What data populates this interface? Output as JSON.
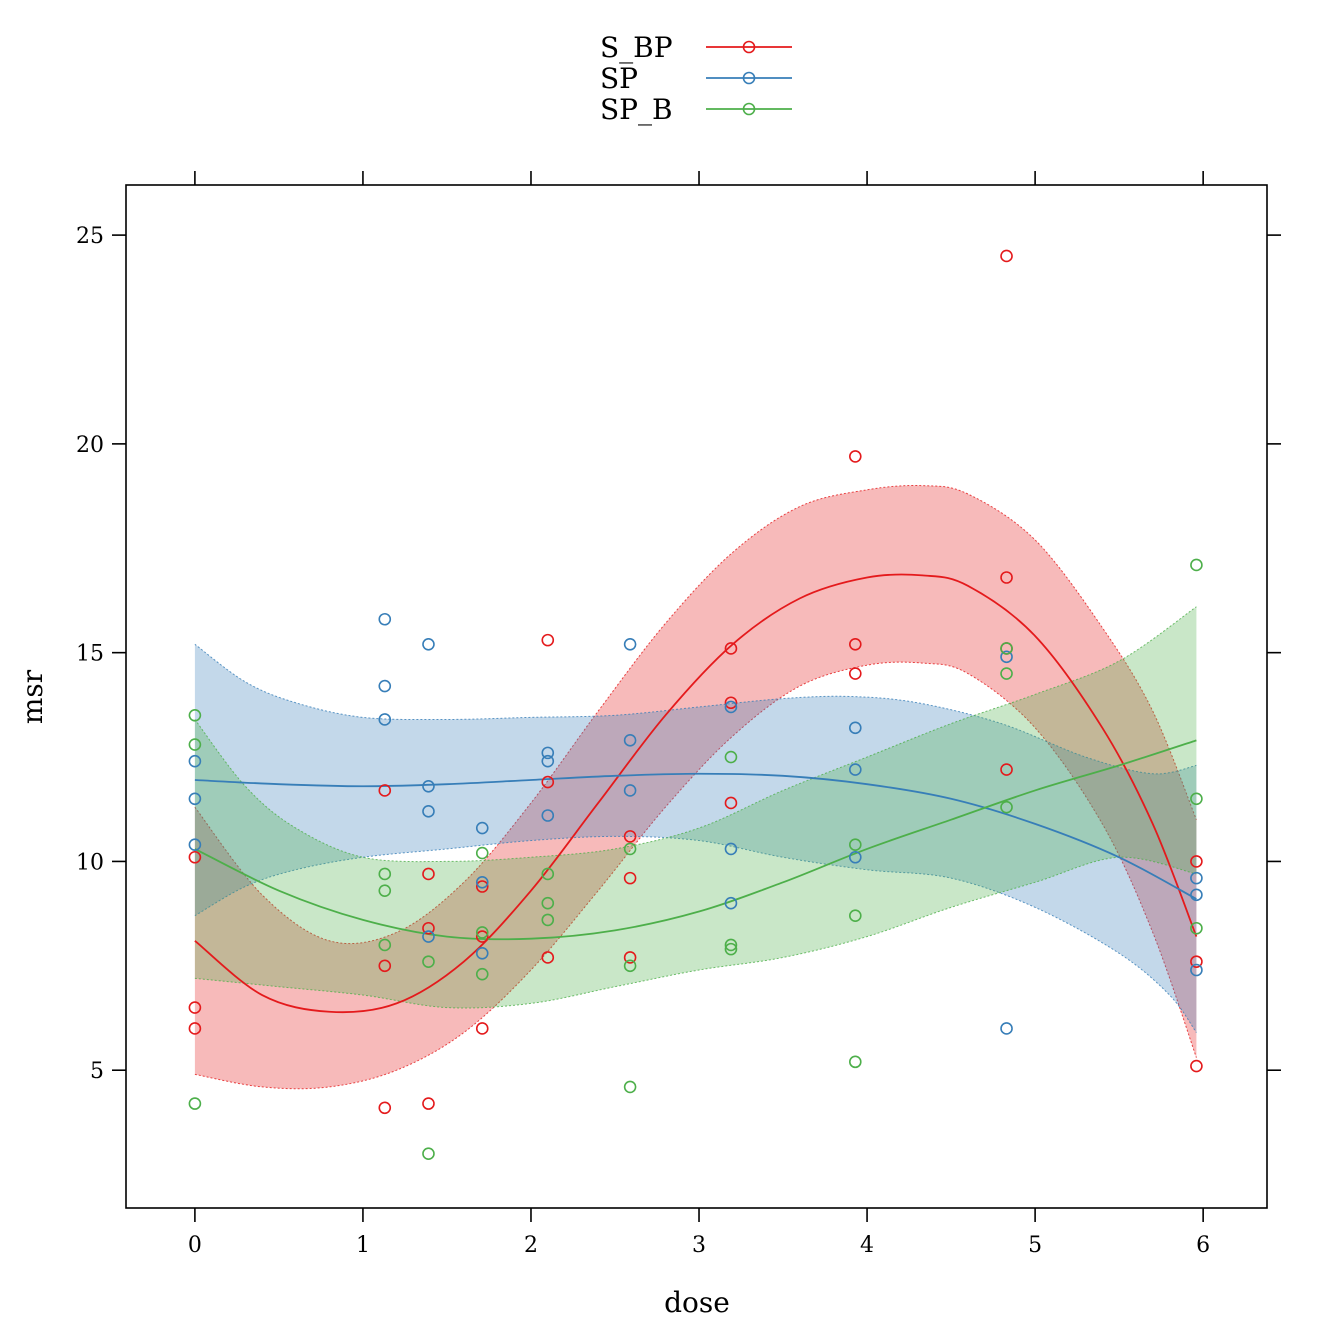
{
  "chart_data": {
    "type": "scatter",
    "xlabel": "dose",
    "ylabel": "msr",
    "xlim": [
      -0.41,
      6.38
    ],
    "ylim": [
      1.7,
      26.2
    ],
    "xticks": [
      0,
      1,
      2,
      3,
      4,
      5,
      6
    ],
    "yticks": [
      5,
      10,
      15,
      20,
      25
    ],
    "legend_position": "top-center",
    "grid": false,
    "series": [
      {
        "name": "S_BP",
        "color": "#E41A1C",
        "points": [
          [
            0,
            10.1
          ],
          [
            0,
            6.5
          ],
          [
            0,
            6.0
          ],
          [
            1.13,
            11.7
          ],
          [
            1.13,
            7.5
          ],
          [
            1.13,
            4.1
          ],
          [
            1.39,
            9.7
          ],
          [
            1.39,
            8.4
          ],
          [
            1.39,
            4.2
          ],
          [
            1.71,
            9.4
          ],
          [
            1.71,
            8.2
          ],
          [
            1.71,
            6.0
          ],
          [
            2.1,
            15.3
          ],
          [
            2.1,
            11.9
          ],
          [
            2.1,
            7.7
          ],
          [
            2.59,
            10.6
          ],
          [
            2.59,
            9.6
          ],
          [
            2.59,
            7.7
          ],
          [
            3.19,
            15.1
          ],
          [
            3.19,
            13.8
          ],
          [
            3.19,
            11.4
          ],
          [
            3.93,
            19.7
          ],
          [
            3.93,
            15.2
          ],
          [
            3.93,
            14.5
          ],
          [
            4.83,
            24.5
          ],
          [
            4.83,
            16.8
          ],
          [
            4.83,
            15.1
          ],
          [
            4.83,
            12.2
          ],
          [
            5.96,
            10.0
          ],
          [
            5.96,
            7.6
          ],
          [
            5.96,
            5.1
          ]
        ],
        "fit": [
          [
            0,
            8.1
          ],
          [
            0.4,
            6.8
          ],
          [
            0.8,
            6.4
          ],
          [
            1.2,
            6.6
          ],
          [
            1.6,
            7.6
          ],
          [
            2.0,
            9.3
          ],
          [
            2.4,
            11.4
          ],
          [
            2.8,
            13.5
          ],
          [
            3.2,
            15.2
          ],
          [
            3.6,
            16.3
          ],
          [
            4.0,
            16.8
          ],
          [
            4.33,
            16.85
          ],
          [
            4.6,
            16.6
          ],
          [
            5.0,
            15.4
          ],
          [
            5.4,
            13.2
          ],
          [
            5.7,
            10.9
          ],
          [
            5.96,
            8.2
          ]
        ],
        "band_upper": [
          [
            0,
            11.3
          ],
          [
            0.4,
            9.2
          ],
          [
            0.8,
            8.1
          ],
          [
            1.2,
            8.3
          ],
          [
            1.6,
            9.5
          ],
          [
            2.0,
            11.4
          ],
          [
            2.4,
            13.6
          ],
          [
            2.8,
            15.7
          ],
          [
            3.2,
            17.4
          ],
          [
            3.6,
            18.5
          ],
          [
            4.0,
            18.9
          ],
          [
            4.33,
            19.0
          ],
          [
            4.6,
            18.8
          ],
          [
            5.0,
            17.7
          ],
          [
            5.4,
            15.6
          ],
          [
            5.7,
            13.6
          ],
          [
            5.96,
            11.0
          ]
        ],
        "band_lower": [
          [
            0,
            4.9
          ],
          [
            0.4,
            4.6
          ],
          [
            0.8,
            4.6
          ],
          [
            1.2,
            5.0
          ],
          [
            1.6,
            5.9
          ],
          [
            2.0,
            7.4
          ],
          [
            2.4,
            9.3
          ],
          [
            2.8,
            11.3
          ],
          [
            3.2,
            13.0
          ],
          [
            3.6,
            14.2
          ],
          [
            4.0,
            14.7
          ],
          [
            4.33,
            14.75
          ],
          [
            4.6,
            14.5
          ],
          [
            5.0,
            13.2
          ],
          [
            5.4,
            10.9
          ],
          [
            5.7,
            8.3
          ],
          [
            5.96,
            5.3
          ]
        ]
      },
      {
        "name": "SP",
        "color": "#377EB8",
        "points": [
          [
            0,
            12.4
          ],
          [
            0,
            11.5
          ],
          [
            0,
            10.4
          ],
          [
            1.13,
            15.8
          ],
          [
            1.13,
            14.2
          ],
          [
            1.13,
            13.4
          ],
          [
            1.39,
            15.2
          ],
          [
            1.39,
            11.8
          ],
          [
            1.39,
            11.2
          ],
          [
            1.39,
            8.2
          ],
          [
            1.71,
            10.8
          ],
          [
            1.71,
            9.5
          ],
          [
            1.71,
            7.8
          ],
          [
            2.1,
            12.6
          ],
          [
            2.1,
            12.4
          ],
          [
            2.1,
            11.1
          ],
          [
            2.59,
            15.2
          ],
          [
            2.59,
            12.9
          ],
          [
            2.59,
            11.7
          ],
          [
            3.19,
            13.7
          ],
          [
            3.19,
            10.3
          ],
          [
            3.19,
            9.0
          ],
          [
            3.93,
            13.2
          ],
          [
            3.93,
            12.2
          ],
          [
            3.93,
            10.1
          ],
          [
            4.83,
            14.9
          ],
          [
            4.83,
            6.0
          ],
          [
            5.96,
            9.6
          ],
          [
            5.96,
            9.2
          ],
          [
            5.96,
            7.4
          ]
        ],
        "fit": [
          [
            0,
            11.95
          ],
          [
            0.5,
            11.85
          ],
          [
            1.0,
            11.8
          ],
          [
            1.5,
            11.85
          ],
          [
            2.0,
            11.95
          ],
          [
            2.5,
            12.05
          ],
          [
            3.0,
            12.1
          ],
          [
            3.5,
            12.05
          ],
          [
            4.0,
            11.85
          ],
          [
            4.5,
            11.5
          ],
          [
            5.0,
            10.9
          ],
          [
            5.5,
            10.1
          ],
          [
            5.96,
            9.1
          ]
        ],
        "band_upper": [
          [
            0,
            15.2
          ],
          [
            0.3,
            14.3
          ],
          [
            0.6,
            13.8
          ],
          [
            1.0,
            13.45
          ],
          [
            1.5,
            13.4
          ],
          [
            2.0,
            13.45
          ],
          [
            2.5,
            13.5
          ],
          [
            3.0,
            13.7
          ],
          [
            3.5,
            13.9
          ],
          [
            3.9,
            13.95
          ],
          [
            4.3,
            13.8
          ],
          [
            4.8,
            13.3
          ],
          [
            5.3,
            12.5
          ],
          [
            5.7,
            12.1
          ],
          [
            5.96,
            12.3
          ]
        ],
        "band_lower": [
          [
            0,
            8.7
          ],
          [
            0.3,
            9.4
          ],
          [
            0.6,
            9.8
          ],
          [
            1.0,
            10.1
          ],
          [
            1.5,
            10.3
          ],
          [
            2.0,
            10.5
          ],
          [
            2.5,
            10.6
          ],
          [
            3.0,
            10.5
          ],
          [
            3.5,
            10.1
          ],
          [
            4.0,
            9.8
          ],
          [
            4.5,
            9.6
          ],
          [
            5.0,
            8.9
          ],
          [
            5.5,
            7.8
          ],
          [
            5.8,
            6.8
          ],
          [
            5.96,
            5.9
          ]
        ]
      },
      {
        "name": "SP_B",
        "color": "#4DAF4A",
        "points": [
          [
            0,
            13.5
          ],
          [
            0,
            12.8
          ],
          [
            0,
            4.2
          ],
          [
            1.13,
            9.7
          ],
          [
            1.13,
            9.3
          ],
          [
            1.13,
            8.0
          ],
          [
            1.39,
            7.6
          ],
          [
            1.39,
            3.0
          ],
          [
            1.71,
            10.2
          ],
          [
            1.71,
            8.3
          ],
          [
            1.71,
            7.3
          ],
          [
            2.1,
            9.7
          ],
          [
            2.1,
            9.0
          ],
          [
            2.1,
            8.6
          ],
          [
            2.59,
            10.3
          ],
          [
            2.59,
            7.5
          ],
          [
            2.59,
            4.6
          ],
          [
            3.19,
            12.5
          ],
          [
            3.19,
            8.0
          ],
          [
            3.19,
            7.9
          ],
          [
            3.93,
            10.4
          ],
          [
            3.93,
            8.7
          ],
          [
            3.93,
            5.2
          ],
          [
            4.83,
            15.1
          ],
          [
            4.83,
            14.5
          ],
          [
            4.83,
            11.3
          ],
          [
            5.96,
            17.1
          ],
          [
            5.96,
            11.5
          ],
          [
            5.96,
            8.4
          ]
        ],
        "fit": [
          [
            0,
            10.3
          ],
          [
            0.5,
            9.3
          ],
          [
            1.0,
            8.6
          ],
          [
            1.5,
            8.2
          ],
          [
            2.0,
            8.15
          ],
          [
            2.5,
            8.35
          ],
          [
            3.0,
            8.8
          ],
          [
            3.5,
            9.5
          ],
          [
            4.0,
            10.3
          ],
          [
            4.5,
            11.0
          ],
          [
            5.0,
            11.7
          ],
          [
            5.5,
            12.3
          ],
          [
            5.96,
            12.9
          ]
        ],
        "band_upper": [
          [
            0,
            13.4
          ],
          [
            0.3,
            11.8
          ],
          [
            0.6,
            10.8
          ],
          [
            1.0,
            10.1
          ],
          [
            1.5,
            10.0
          ],
          [
            2.0,
            10.1
          ],
          [
            2.5,
            10.3
          ],
          [
            3.0,
            10.8
          ],
          [
            3.5,
            11.7
          ],
          [
            4.0,
            12.5
          ],
          [
            4.5,
            13.3
          ],
          [
            5.0,
            14.0
          ],
          [
            5.5,
            14.8
          ],
          [
            5.96,
            16.1
          ]
        ],
        "band_lower": [
          [
            0,
            7.2
          ],
          [
            0.5,
            7.0
          ],
          [
            1.0,
            6.8
          ],
          [
            1.5,
            6.5
          ],
          [
            2.0,
            6.6
          ],
          [
            2.5,
            7.0
          ],
          [
            3.0,
            7.4
          ],
          [
            3.5,
            7.7
          ],
          [
            4.0,
            8.2
          ],
          [
            4.5,
            8.9
          ],
          [
            5.0,
            9.5
          ],
          [
            5.5,
            10.1
          ],
          [
            5.96,
            9.7
          ]
        ]
      }
    ]
  }
}
